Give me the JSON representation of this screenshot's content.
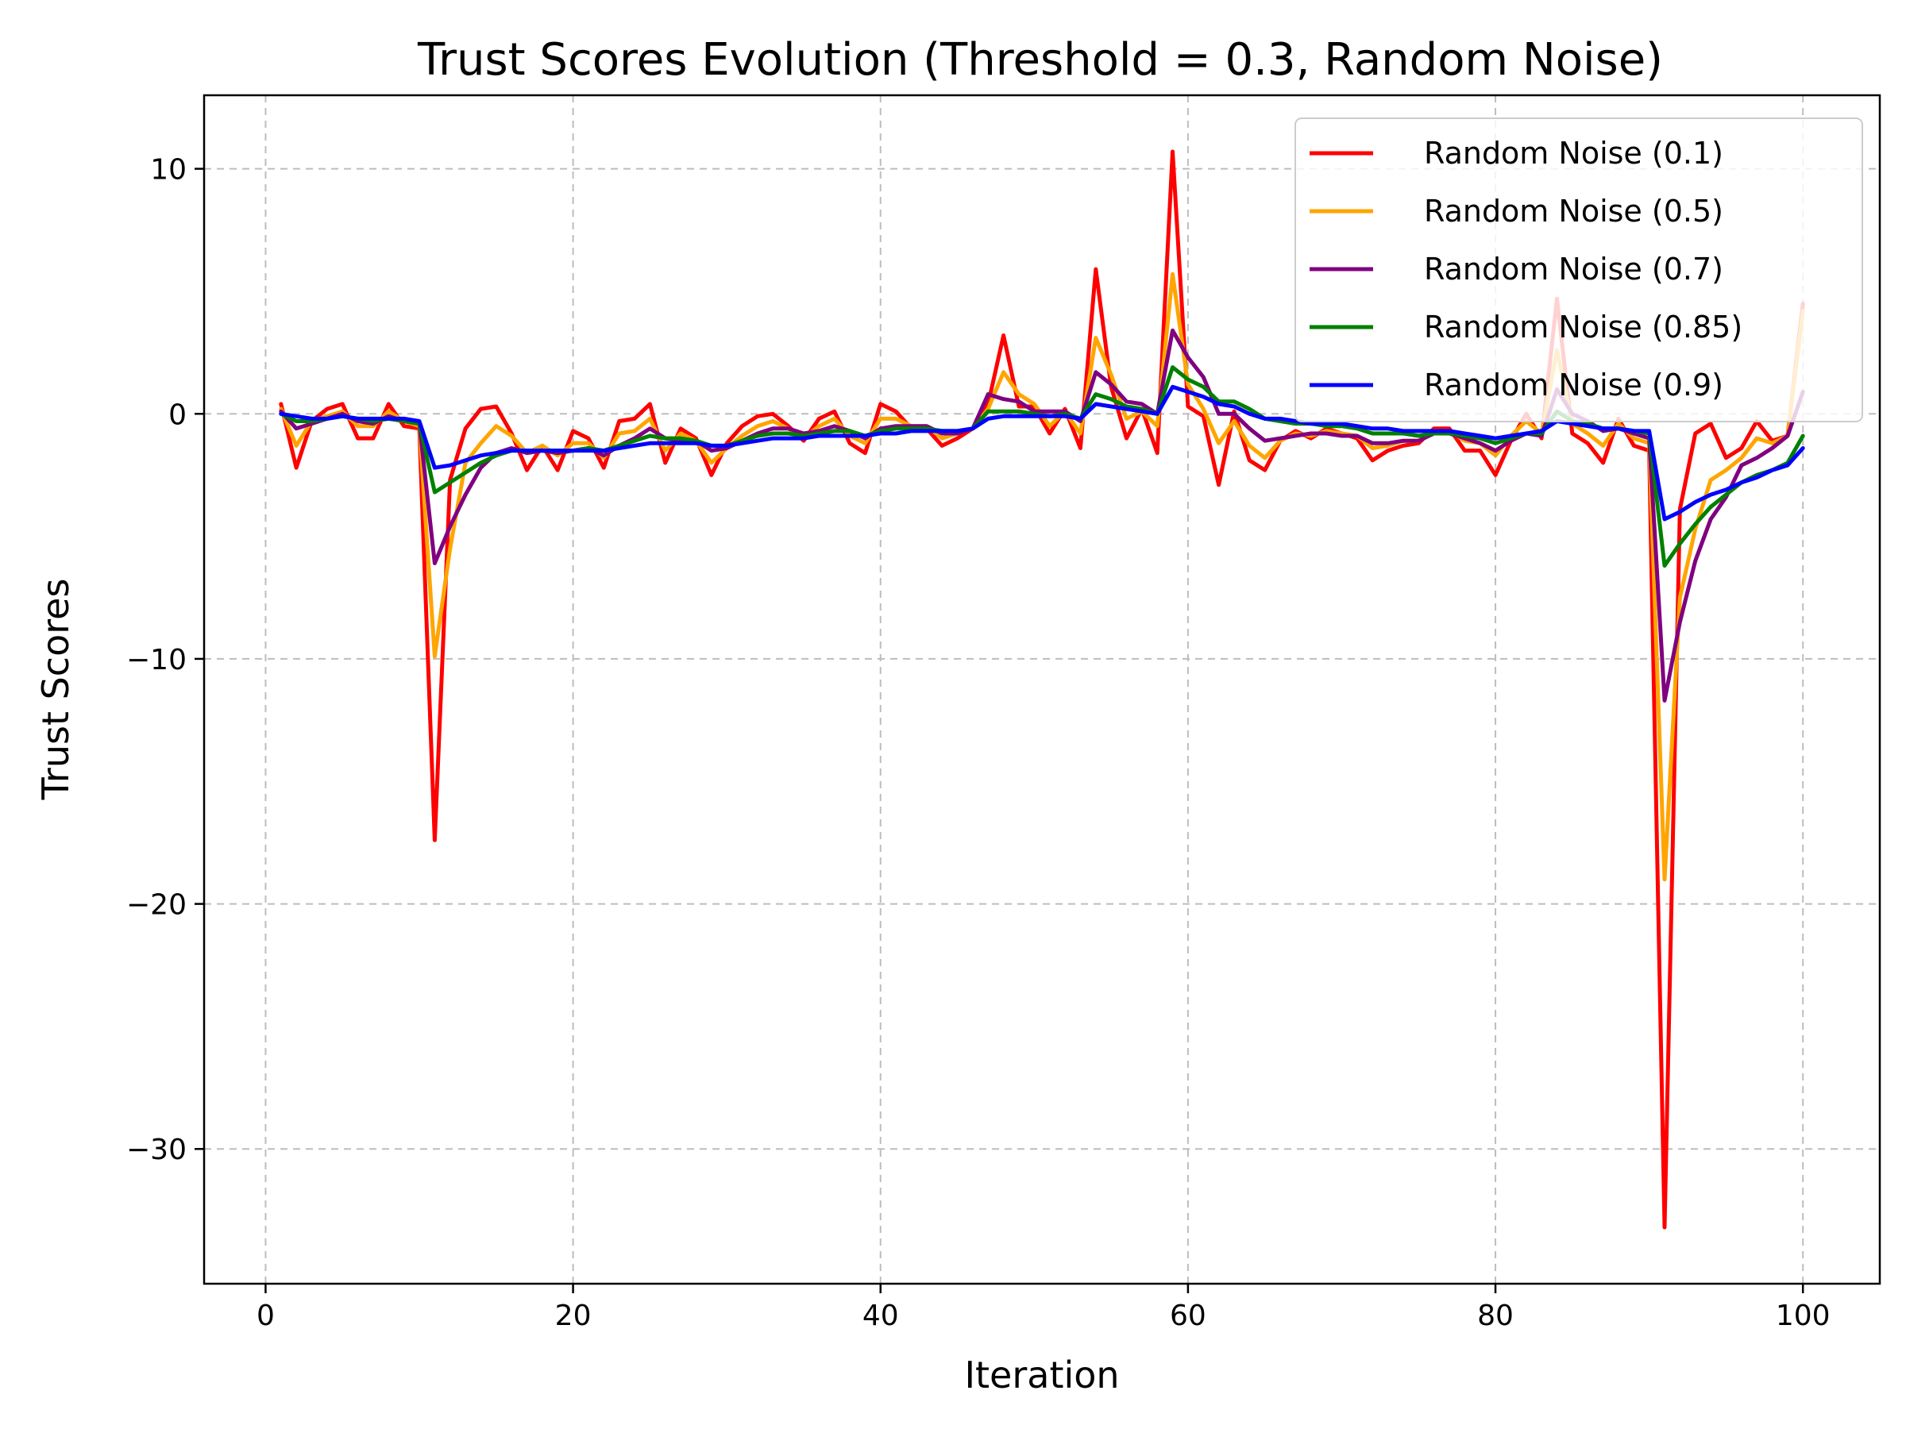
{
  "chart_data": {
    "type": "line",
    "title": "Trust Scores Evolution (Threshold = 0.3, Random Noise)",
    "xlabel": "Iteration",
    "ylabel": "Trust Scores",
    "xlim": [
      -4,
      105
    ],
    "ylim": [
      -35.5,
      13
    ],
    "xticks": [
      0,
      20,
      40,
      60,
      80,
      100
    ],
    "yticks": [
      -30,
      -20,
      -10,
      0,
      10
    ],
    "xtick_labels": [
      "0",
      "20",
      "40",
      "60",
      "80",
      "100"
    ],
    "ytick_labels": [
      "−30",
      "−20",
      "−10",
      "0",
      "10"
    ],
    "grid": true,
    "legend_position": "top-right",
    "x": [
      1,
      2,
      3,
      4,
      5,
      6,
      7,
      8,
      9,
      10,
      11,
      12,
      13,
      14,
      15,
      16,
      17,
      18,
      19,
      20,
      21,
      22,
      23,
      24,
      25,
      26,
      27,
      28,
      29,
      30,
      31,
      32,
      33,
      34,
      35,
      36,
      37,
      38,
      39,
      40,
      41,
      42,
      43,
      44,
      45,
      46,
      47,
      48,
      49,
      50,
      51,
      52,
      53,
      54,
      55,
      56,
      57,
      58,
      59,
      60,
      61,
      62,
      63,
      64,
      65,
      66,
      67,
      68,
      69,
      70,
      71,
      72,
      73,
      74,
      75,
      76,
      77,
      78,
      79,
      80,
      81,
      82,
      83,
      84,
      85,
      86,
      87,
      88,
      89,
      90,
      91,
      92,
      93,
      94,
      95,
      96,
      97,
      98,
      99,
      100
    ],
    "series": [
      {
        "name": "Random Noise (0.1)",
        "color": "#ff0000",
        "values": [
          0.4,
          -2.2,
          -0.3,
          0.2,
          0.4,
          -1.0,
          -1.0,
          0.4,
          -0.5,
          -0.6,
          -17.4,
          -2.7,
          -0.6,
          0.2,
          0.3,
          -0.8,
          -2.3,
          -1.3,
          -2.3,
          -0.7,
          -1.0,
          -2.2,
          -0.3,
          -0.2,
          0.4,
          -2.0,
          -0.6,
          -1.0,
          -2.5,
          -1.2,
          -0.5,
          -0.1,
          0.0,
          -0.5,
          -1.1,
          -0.2,
          0.1,
          -1.2,
          -1.6,
          0.4,
          0.1,
          -0.6,
          -0.6,
          -1.3,
          -1.0,
          -0.6,
          0.4,
          3.2,
          0.3,
          0.3,
          -0.8,
          0.2,
          -1.4,
          5.9,
          1.1,
          -1.0,
          0.2,
          -1.6,
          10.7,
          0.3,
          -0.1,
          -2.9,
          0.1,
          -1.9,
          -2.3,
          -1.1,
          -0.7,
          -1.0,
          -0.6,
          -0.8,
          -1.0,
          -1.9,
          -1.5,
          -1.3,
          -1.2,
          -0.6,
          -0.6,
          -1.5,
          -1.5,
          -2.5,
          -1.1,
          0.0,
          -1.0,
          4.7,
          -0.8,
          -1.2,
          -2.0,
          -0.2,
          -1.3,
          -1.5,
          -33.2,
          -3.9,
          -0.8,
          -0.4,
          -1.8,
          -1.4,
          -0.3,
          -1.1,
          -0.9,
          4.5
        ]
      },
      {
        "name": "Random Noise (0.5)",
        "color": "#ffa500",
        "values": [
          0.2,
          -1.3,
          -0.3,
          -0.1,
          0.1,
          -0.5,
          -0.5,
          0.1,
          -0.3,
          -0.5,
          -9.9,
          -5.5,
          -2.0,
          -1.2,
          -0.5,
          -0.9,
          -1.6,
          -1.3,
          -1.7,
          -1.2,
          -1.2,
          -1.8,
          -0.8,
          -0.7,
          -0.2,
          -1.5,
          -0.8,
          -1.1,
          -2.0,
          -1.4,
          -0.9,
          -0.5,
          -0.3,
          -0.6,
          -1.0,
          -0.5,
          -0.2,
          -0.9,
          -1.2,
          -0.2,
          -0.2,
          -0.5,
          -0.5,
          -1.0,
          -0.8,
          -0.6,
          0.2,
          1.7,
          0.8,
          0.4,
          -0.5,
          0.1,
          -0.8,
          3.1,
          1.6,
          -0.2,
          0.1,
          -0.5,
          5.7,
          1.2,
          0.2,
          -1.2,
          -0.3,
          -1.3,
          -1.8,
          -1.1,
          -0.8,
          -0.9,
          -0.7,
          -0.8,
          -0.9,
          -1.4,
          -1.3,
          -1.1,
          -1.1,
          -0.7,
          -0.7,
          -1.1,
          -1.2,
          -1.7,
          -0.9,
          -0.3,
          -0.8,
          2.6,
          -0.4,
          -0.8,
          -1.3,
          -0.4,
          -1.0,
          -1.2,
          -19.0,
          -7.5,
          -4.7,
          -2.7,
          -2.3,
          -1.8,
          -1.0,
          -1.2,
          -0.9,
          4.2
        ]
      },
      {
        "name": "Random Noise (0.7)",
        "color": "#800080",
        "values": [
          0.1,
          -0.6,
          -0.4,
          -0.2,
          0.0,
          -0.3,
          -0.4,
          -0.1,
          -0.3,
          -0.4,
          -6.1,
          -4.6,
          -3.3,
          -2.2,
          -1.6,
          -1.4,
          -1.6,
          -1.5,
          -1.6,
          -1.5,
          -1.4,
          -1.7,
          -1.3,
          -1.0,
          -0.6,
          -1.0,
          -1.1,
          -1.1,
          -1.5,
          -1.4,
          -1.1,
          -0.8,
          -0.6,
          -0.6,
          -0.8,
          -0.7,
          -0.5,
          -0.7,
          -1.0,
          -0.6,
          -0.5,
          -0.5,
          -0.5,
          -0.8,
          -0.8,
          -0.6,
          0.8,
          0.6,
          0.5,
          0.1,
          0.1,
          0.1,
          -0.3,
          1.7,
          1.2,
          0.5,
          0.4,
          0.0,
          3.4,
          2.3,
          1.5,
          0.0,
          0.0,
          -0.6,
          -1.1,
          -1.0,
          -0.9,
          -0.8,
          -0.8,
          -0.9,
          -0.9,
          -1.2,
          -1.2,
          -1.1,
          -1.1,
          -0.8,
          -0.8,
          -1.0,
          -1.2,
          -1.5,
          -1.1,
          -0.8,
          -0.9,
          1.0,
          0.0,
          -0.3,
          -0.7,
          -0.6,
          -0.8,
          -1.0,
          -11.7,
          -8.5,
          -6.0,
          -4.3,
          -3.4,
          -2.1,
          -1.8,
          -1.4,
          -0.9,
          0.9
        ]
      },
      {
        "name": "Random Noise (0.85)",
        "color": "#008000",
        "values": [
          0.0,
          -0.3,
          -0.3,
          -0.2,
          -0.1,
          -0.2,
          -0.3,
          -0.2,
          -0.3,
          -0.4,
          -3.2,
          -2.8,
          -2.4,
          -2.0,
          -1.7,
          -1.5,
          -1.5,
          -1.5,
          -1.5,
          -1.5,
          -1.4,
          -1.5,
          -1.3,
          -1.1,
          -0.9,
          -1.0,
          -1.0,
          -1.1,
          -1.3,
          -1.3,
          -1.1,
          -0.9,
          -0.8,
          -0.8,
          -0.9,
          -0.8,
          -0.7,
          -0.7,
          -0.9,
          -0.7,
          -0.6,
          -0.6,
          -0.6,
          -0.7,
          -0.7,
          -0.6,
          0.1,
          0.1,
          0.1,
          0.0,
          -0.1,
          0.0,
          -0.2,
          0.8,
          0.6,
          0.3,
          0.2,
          0.0,
          1.9,
          1.4,
          1.1,
          0.5,
          0.5,
          0.2,
          -0.2,
          -0.3,
          -0.4,
          -0.4,
          -0.5,
          -0.5,
          -0.6,
          -0.8,
          -0.8,
          -0.8,
          -0.9,
          -0.8,
          -0.8,
          -0.9,
          -1.0,
          -1.2,
          -1.0,
          -0.8,
          -0.8,
          0.1,
          -0.3,
          -0.4,
          -0.6,
          -0.6,
          -0.7,
          -0.8,
          -6.2,
          -5.3,
          -4.5,
          -3.8,
          -3.3,
          -2.8,
          -2.5,
          -2.3,
          -2.0,
          -0.9
        ]
      },
      {
        "name": "Random Noise (0.9)",
        "color": "#0000ff",
        "values": [
          0.0,
          -0.1,
          -0.2,
          -0.2,
          -0.1,
          -0.2,
          -0.2,
          -0.2,
          -0.2,
          -0.3,
          -2.2,
          -2.1,
          -1.9,
          -1.7,
          -1.6,
          -1.5,
          -1.5,
          -1.5,
          -1.5,
          -1.5,
          -1.5,
          -1.5,
          -1.4,
          -1.3,
          -1.2,
          -1.2,
          -1.2,
          -1.2,
          -1.3,
          -1.3,
          -1.2,
          -1.1,
          -1.0,
          -1.0,
          -1.0,
          -0.9,
          -0.9,
          -0.9,
          -0.9,
          -0.8,
          -0.8,
          -0.7,
          -0.7,
          -0.7,
          -0.7,
          -0.6,
          -0.2,
          -0.1,
          -0.1,
          -0.1,
          -0.1,
          -0.1,
          -0.2,
          0.4,
          0.3,
          0.2,
          0.1,
          0.0,
          1.1,
          0.9,
          0.7,
          0.4,
          0.3,
          0.0,
          -0.2,
          -0.2,
          -0.3,
          -0.4,
          -0.4,
          -0.4,
          -0.5,
          -0.6,
          -0.6,
          -0.7,
          -0.7,
          -0.7,
          -0.7,
          -0.8,
          -0.9,
          -1.0,
          -0.9,
          -0.8,
          -0.7,
          -0.3,
          -0.4,
          -0.5,
          -0.6,
          -0.6,
          -0.7,
          -0.7,
          -4.3,
          -4.0,
          -3.6,
          -3.3,
          -3.1,
          -2.8,
          -2.6,
          -2.3,
          -2.1,
          -1.4
        ]
      }
    ]
  }
}
